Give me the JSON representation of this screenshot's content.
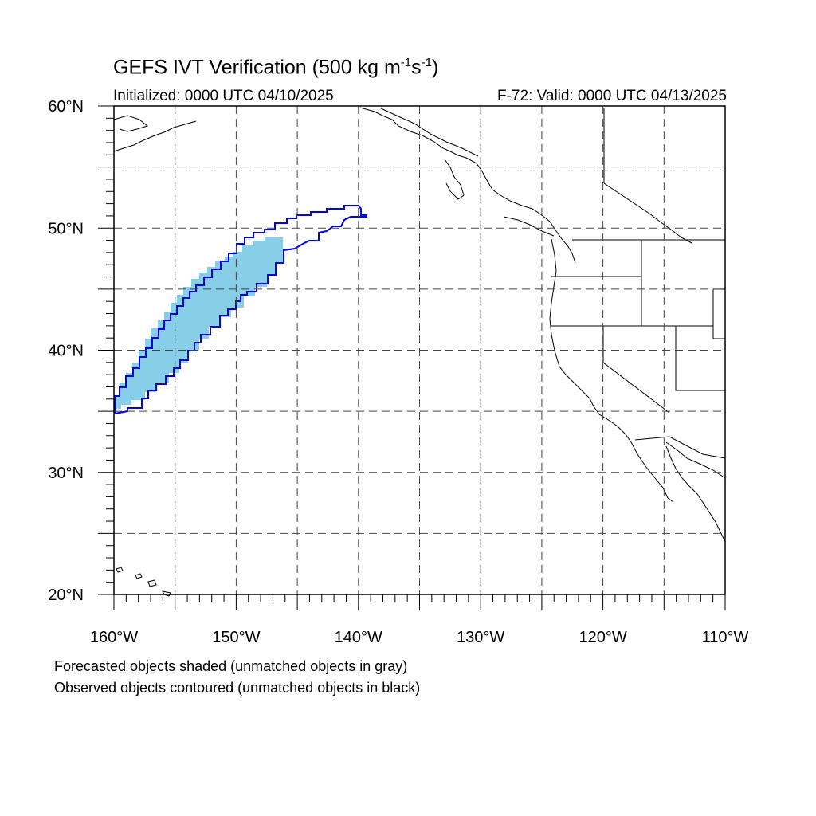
{
  "title": {
    "main": "GEFS IVT Verification (500 kg m",
    "exp1": "-1",
    "mid": "s",
    "exp2": "-1",
    "end": ")"
  },
  "initialized": "Initialized: 0000 UTC 04/10/2025",
  "valid": "F-72: Valid: 0000 UTC 04/13/2025",
  "footer": {
    "line1": "Forecasted objects shaded (unmatched objects in gray)",
    "line2": "Observed objects contoured (unmatched objects in black)"
  },
  "map": {
    "lon_range": [
      -160,
      -110
    ],
    "lat_range": [
      20,
      60
    ],
    "lon_ticks": [
      "160°W",
      "150°W",
      "140°W",
      "130°W",
      "120°W",
      "110°W"
    ],
    "lat_ticks": [
      "20°N",
      "30°N",
      "40°N",
      "50°N",
      "60°N"
    ],
    "forecast_fill_color": "#87cfe8",
    "observed_contour_color": "#0000ee"
  }
}
